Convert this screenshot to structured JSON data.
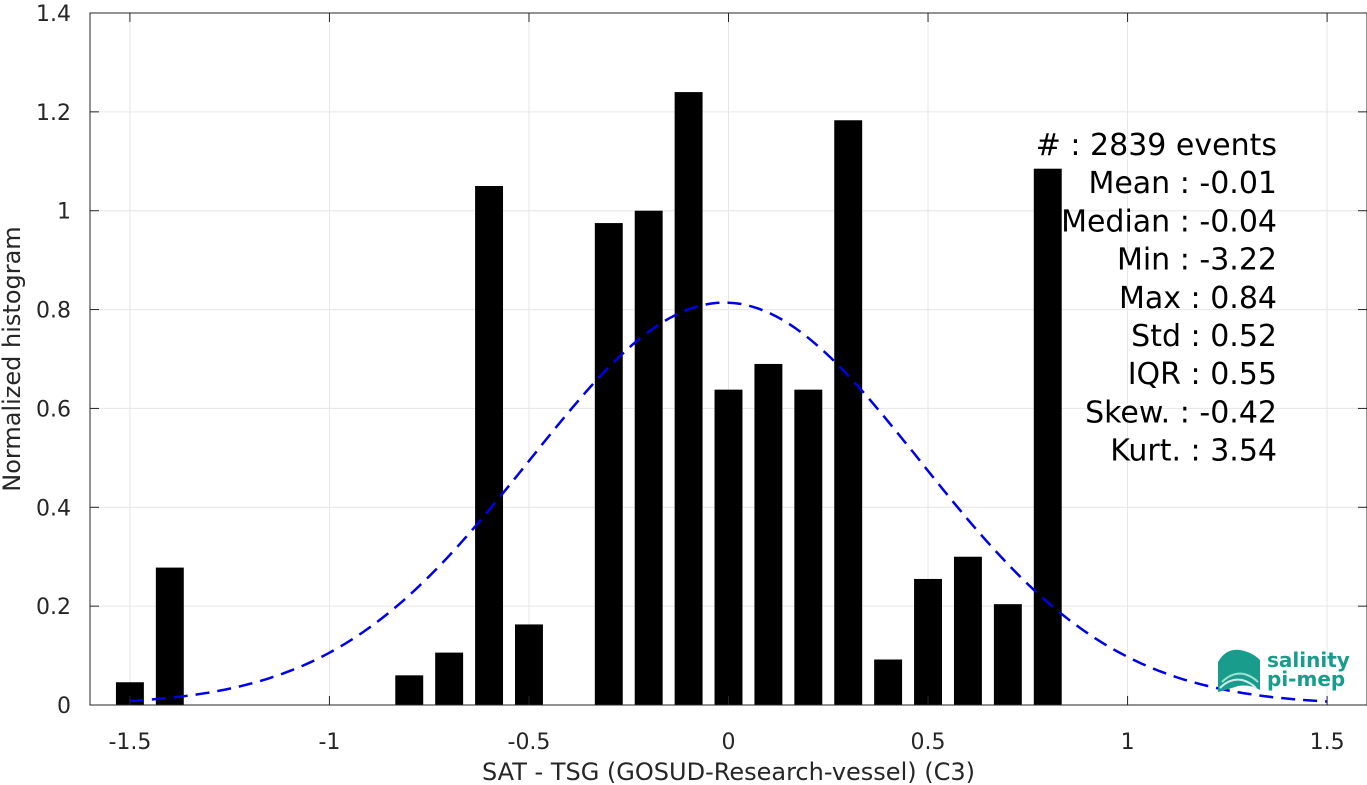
{
  "chart_data": {
    "type": "bar",
    "xlabel": "SAT - TSG (GOSUD-Research-vessel) (C3)",
    "ylabel": "Normalized histogram",
    "xlim": [
      -1.6,
      1.6
    ],
    "ylim": [
      0,
      1.4
    ],
    "xticks": [
      -1.5,
      -1,
      -0.5,
      0,
      0.5,
      1,
      1.5
    ],
    "xtick_labels": [
      "-1.5",
      "-1",
      "-0.5",
      "0",
      "0.5",
      "1",
      "1.5"
    ],
    "yticks": [
      0,
      0.2,
      0.4,
      0.6,
      0.8,
      1,
      1.2,
      1.4
    ],
    "ytick_labels": [
      "0",
      "0.2",
      "0.4",
      "0.6",
      "0.8",
      "1",
      "1.2",
      "1.4"
    ],
    "grid": true,
    "bar_width": 0.07,
    "bar_color": "#000000",
    "bars": [
      {
        "x": -1.5,
        "y": 0.046
      },
      {
        "x": -1.4,
        "y": 0.278
      },
      {
        "x": -0.8,
        "y": 0.06
      },
      {
        "x": -0.7,
        "y": 0.106
      },
      {
        "x": -0.6,
        "y": 1.05
      },
      {
        "x": -0.5,
        "y": 0.163
      },
      {
        "x": -0.3,
        "y": 0.975
      },
      {
        "x": -0.2,
        "y": 1.0
      },
      {
        "x": -0.1,
        "y": 1.24
      },
      {
        "x": 0.0,
        "y": 0.638
      },
      {
        "x": 0.1,
        "y": 0.69
      },
      {
        "x": 0.2,
        "y": 0.638
      },
      {
        "x": 0.3,
        "y": 1.183
      },
      {
        "x": 0.4,
        "y": 0.092
      },
      {
        "x": 0.5,
        "y": 0.255
      },
      {
        "x": 0.6,
        "y": 0.3
      },
      {
        "x": 0.7,
        "y": 0.204
      },
      {
        "x": 0.8,
        "y": 1.085
      }
    ],
    "fit_curve": {
      "style": "dashed",
      "color": "#0000e6",
      "mean": -0.01,
      "std": 0.49,
      "x_range": [
        -1.5,
        1.5
      ]
    },
    "stats": [
      "#  : 2839 events",
      "Mean : -0.01",
      "Median : -0.04",
      "Min : -3.22",
      "Max : 0.84",
      "Std : 0.52",
      "IQR : 0.55",
      "Skew. : -0.42",
      "Kurt. : 3.54"
    ]
  },
  "logo": {
    "line1": "salinity",
    "line2": "pi-mep",
    "color": "#1a9c8c"
  }
}
